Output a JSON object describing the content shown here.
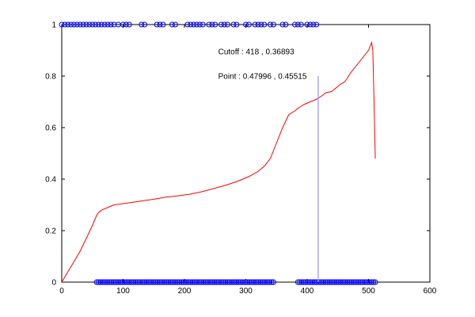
{
  "chart_data": {
    "type": "line",
    "xlim": [
      0,
      600
    ],
    "ylim": [
      0,
      1
    ],
    "x_ticks": [
      "0",
      "100",
      "200",
      "300",
      "400",
      "500",
      "600"
    ],
    "y_ticks": [
      "0",
      "0.2",
      "0.4",
      "0.6",
      "0.8",
      "1"
    ],
    "grid": false,
    "series": [
      {
        "color": "#ff0000",
        "x": [
          0,
          10,
          20,
          30,
          40,
          50,
          57,
          60,
          65,
          75,
          85,
          95,
          110,
          130,
          150,
          170,
          190,
          210,
          230,
          250,
          270,
          290,
          305,
          320,
          330,
          340,
          350,
          360,
          370,
          380,
          385,
          395,
          405,
          415,
          425,
          430,
          440,
          450,
          455,
          460,
          465,
          470,
          480,
          490,
          500,
          505,
          507,
          509,
          511
        ],
        "y": [
          0.0,
          0.04,
          0.08,
          0.12,
          0.17,
          0.22,
          0.26,
          0.27,
          0.28,
          0.29,
          0.3,
          0.303,
          0.308,
          0.315,
          0.322,
          0.33,
          0.335,
          0.342,
          0.352,
          0.365,
          0.378,
          0.395,
          0.41,
          0.43,
          0.45,
          0.48,
          0.54,
          0.6,
          0.65,
          0.665,
          0.675,
          0.69,
          0.7,
          0.71,
          0.725,
          0.735,
          0.74,
          0.76,
          0.77,
          0.775,
          0.79,
          0.81,
          0.84,
          0.87,
          0.9,
          0.93,
          0.9,
          0.7,
          0.48
        ]
      },
      {
        "color": "#0000ff",
        "marker": "circle",
        "x": [
          0,
          5,
          10,
          15,
          20,
          25,
          30,
          35,
          40,
          45,
          50,
          55,
          60,
          65,
          70,
          75,
          80,
          85,
          92,
          100,
          105,
          110,
          130,
          135,
          155,
          160,
          165,
          180,
          185,
          205,
          210,
          215,
          220,
          225,
          230,
          240,
          245,
          250,
          260,
          265,
          270,
          280,
          285,
          300,
          305,
          315,
          320,
          325,
          330,
          340,
          345,
          360,
          365,
          380,
          385,
          390,
          400,
          405,
          410,
          415
        ],
        "y": [
          1,
          1,
          1,
          1,
          1,
          1,
          1,
          1,
          1,
          1,
          1,
          1,
          1,
          1,
          1,
          1,
          1,
          1,
          1,
          1,
          1,
          1,
          1,
          1,
          1,
          1,
          1,
          1,
          1,
          1,
          1,
          1,
          1,
          1,
          1,
          1,
          1,
          1,
          1,
          1,
          1,
          1,
          1,
          1,
          1,
          1,
          1,
          1,
          1,
          1,
          1,
          1,
          1,
          1,
          1,
          1,
          1,
          1,
          1,
          1
        ]
      },
      {
        "color": "#0000ff",
        "marker": "circle",
        "x": [
          57,
          60,
          63,
          66,
          69,
          72,
          75,
          78,
          81,
          84,
          87,
          90,
          93,
          96,
          99,
          102,
          105,
          108,
          111,
          114,
          117,
          120,
          123,
          126,
          129,
          132,
          135,
          138,
          141,
          144,
          147,
          150,
          153,
          156,
          159,
          162,
          165,
          168,
          171,
          174,
          177,
          180,
          183,
          186,
          189,
          192,
          195,
          198,
          201,
          204,
          207,
          210,
          213,
          216,
          219,
          222,
          225,
          228,
          231,
          234,
          237,
          240,
          243,
          246,
          249,
          252,
          255,
          258,
          261,
          264,
          267,
          270,
          273,
          276,
          279,
          282,
          285,
          288,
          291,
          294,
          297,
          300,
          303,
          306,
          309,
          312,
          315,
          318,
          321,
          324,
          327,
          330,
          333,
          336,
          339,
          342,
          345,
          385,
          388,
          391,
          394,
          397,
          400,
          403,
          406,
          409,
          412,
          415,
          418,
          421,
          424,
          427,
          430,
          433,
          436,
          439,
          442,
          445,
          448,
          451,
          454,
          457,
          460,
          463,
          466,
          469,
          472,
          475,
          478,
          481,
          484,
          487,
          490,
          493,
          496,
          499,
          502,
          505,
          508,
          511
        ],
        "y": [
          0,
          0,
          0,
          0,
          0,
          0,
          0,
          0,
          0,
          0,
          0,
          0,
          0,
          0,
          0,
          0,
          0,
          0,
          0,
          0,
          0,
          0,
          0,
          0,
          0,
          0,
          0,
          0,
          0,
          0,
          0,
          0,
          0,
          0,
          0,
          0,
          0,
          0,
          0,
          0,
          0,
          0,
          0,
          0,
          0,
          0,
          0,
          0,
          0,
          0,
          0,
          0,
          0,
          0,
          0,
          0,
          0,
          0,
          0,
          0,
          0,
          0,
          0,
          0,
          0,
          0,
          0,
          0,
          0,
          0,
          0,
          0,
          0,
          0,
          0,
          0,
          0,
          0,
          0,
          0,
          0,
          0,
          0,
          0,
          0,
          0,
          0,
          0,
          0,
          0,
          0,
          0,
          0,
          0,
          0,
          0,
          0,
          0,
          0,
          0,
          0,
          0,
          0,
          0,
          0,
          0,
          0,
          0,
          0,
          0,
          0,
          0,
          0,
          0,
          0,
          0,
          0,
          0,
          0,
          0,
          0,
          0,
          0,
          0,
          0,
          0,
          0,
          0,
          0,
          0,
          0,
          0,
          0,
          0,
          0,
          0,
          0,
          0,
          0,
          0
        ]
      }
    ],
    "cutoff_line": {
      "color": "#9999ff",
      "x": 418,
      "y_range": [
        0,
        0.8
      ]
    },
    "annotations": [
      {
        "text": "Cutoff : 418 , 0.36893",
        "x": 255,
        "y": 0.885
      },
      {
        "text": "Point : 0.47996 , 0.45515",
        "x": 255,
        "y": 0.79
      }
    ]
  }
}
